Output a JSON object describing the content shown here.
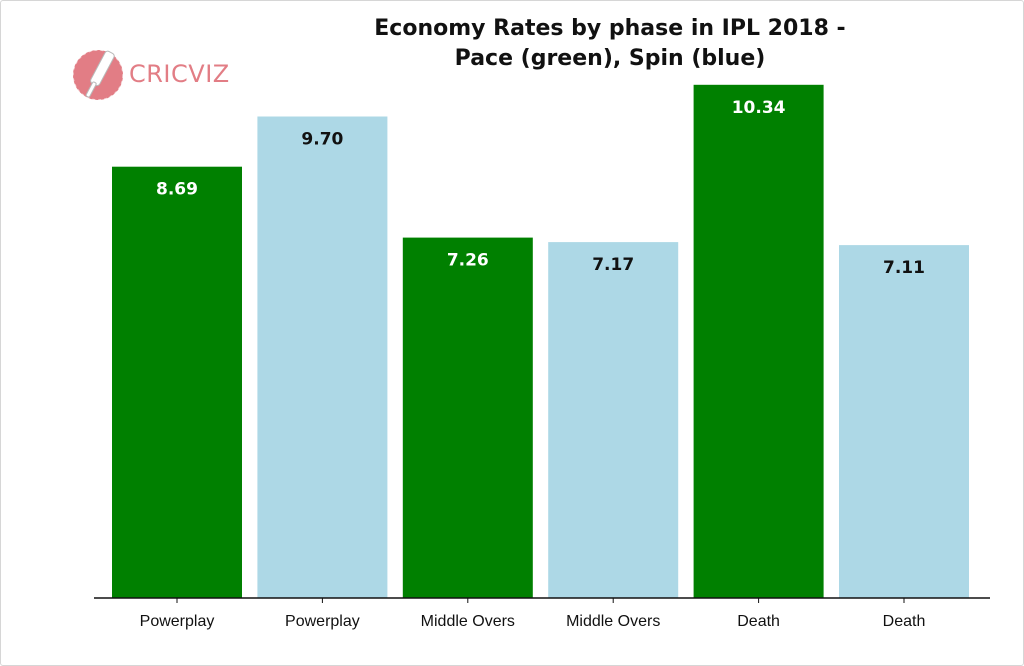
{
  "logo": {
    "text": "CRICVIZ",
    "icon": "cricket-bat-ball-icon",
    "color": "#e27d85"
  },
  "colors": {
    "pace": "#008000",
    "spin": "#add8e6",
    "pace_label": "#ffffff",
    "spin_label": "#111111"
  },
  "chart_data": {
    "type": "bar",
    "title_lines": [
      "Economy Rates by phase in IPL 2018 -",
      "Pace (green), Spin (blue)"
    ],
    "categories": [
      "Powerplay",
      "Powerplay",
      "Middle Overs",
      "Middle Overs",
      "Death",
      "Death"
    ],
    "values": [
      8.69,
      9.7,
      7.26,
      7.17,
      10.34,
      7.11
    ],
    "value_labels": [
      "8.69",
      "9.70",
      "7.26",
      "7.17",
      "10.34",
      "7.11"
    ],
    "bowling_type": [
      "pace",
      "spin",
      "pace",
      "spin",
      "pace",
      "spin"
    ],
    "xlabel": "",
    "ylabel": "",
    "ylim": [
      0,
      11
    ],
    "grid": false,
    "legend": "none"
  }
}
